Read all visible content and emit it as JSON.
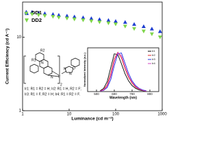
{
  "chart_data": [
    {
      "type": "scatter",
      "xlabel": "Luminance (cd m⁻²)",
      "ylabel": "Current Efficiency (cd A⁻¹)",
      "log_x": true,
      "log_y": true,
      "xlim": [
        1,
        1000
      ],
      "xticks": [
        1,
        10,
        100,
        1000
      ],
      "ylim": [
        1,
        30
      ],
      "yticks": [
        1,
        10
      ],
      "legend": "upper-left",
      "x": [
        1.2,
        1.6,
        2.2,
        3,
        4.5,
        6,
        9,
        13,
        20,
        30,
        45,
        70,
        100,
        160,
        250,
        400,
        600,
        900
      ],
      "series": [
        {
          "name": "DD1",
          "color": "#1f3fd0",
          "marker": "triangle-up",
          "values": [
            22,
            22,
            21.5,
            21,
            20.5,
            20,
            19.5,
            19,
            18.5,
            18,
            17.5,
            17,
            16.5,
            16,
            15,
            14,
            13,
            12
          ]
        },
        {
          "name": "DD2",
          "color": "#7fd64a",
          "marker": "triangle-down",
          "values": [
            21,
            20.5,
            20,
            19.5,
            19,
            18.5,
            18,
            17.5,
            17,
            16.5,
            16,
            15.5,
            15,
            14,
            13,
            12,
            11,
            10
          ]
        }
      ],
      "annotations": [
        "Ir1: R1 = R2 = H; Ir2: R1 = H, R2 = F;",
        "Ir3: R1 = F, R2 = H; Ir4: R1 = R2 = F."
      ],
      "structure_labels": [
        "R1",
        "R2",
        "N",
        "N",
        "Ir",
        "N",
        "N",
        "O",
        "2"
      ]
    },
    {
      "type": "line",
      "xlabel": "Wavelength (nm)",
      "ylabel": "Normalized Intensity (a.u.)",
      "xlim": [
        450,
        850
      ],
      "xticks": [
        500,
        600,
        700,
        800
      ],
      "ylim": [
        0,
        1.1
      ],
      "legend": "upper-right",
      "x": [
        520,
        540,
        560,
        580,
        600,
        620,
        640,
        660,
        680,
        700,
        720,
        740,
        760,
        780
      ],
      "series": [
        {
          "name": "Ir1",
          "color": "#000000",
          "values": [
            0.02,
            0.08,
            0.25,
            0.6,
            0.95,
            0.93,
            0.7,
            0.45,
            0.27,
            0.15,
            0.08,
            0.04,
            0.02,
            0.01
          ]
        },
        {
          "name": "Ir2",
          "color": "#e02020",
          "values": [
            0.01,
            0.05,
            0.17,
            0.45,
            0.82,
            0.99,
            0.85,
            0.58,
            0.36,
            0.21,
            0.11,
            0.06,
            0.03,
            0.01
          ]
        },
        {
          "name": "Ir3",
          "color": "#2030e0",
          "values": [
            0.01,
            0.03,
            0.1,
            0.3,
            0.65,
            0.95,
            0.97,
            0.72,
            0.46,
            0.27,
            0.15,
            0.08,
            0.04,
            0.02
          ]
        },
        {
          "name": "Ir4",
          "color": "#d040c0",
          "values": [
            0.01,
            0.04,
            0.13,
            0.38,
            0.75,
            0.98,
            0.9,
            0.64,
            0.4,
            0.24,
            0.13,
            0.07,
            0.03,
            0.01
          ]
        }
      ]
    }
  ]
}
